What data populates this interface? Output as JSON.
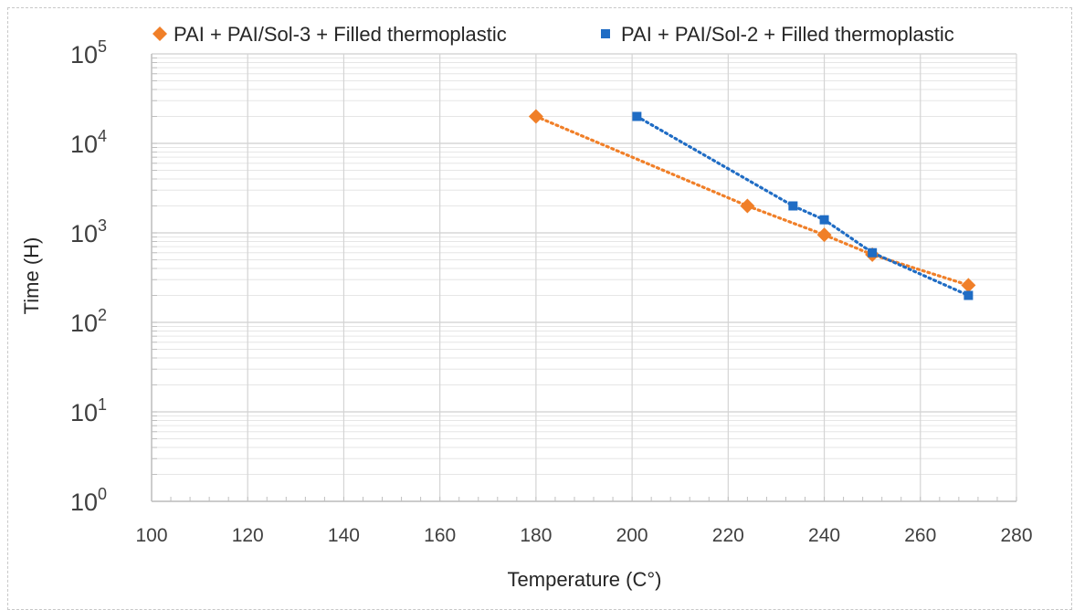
{
  "chart_data": {
    "type": "scatter",
    "title": "",
    "xlabel": "Temperature (C°)",
    "ylabel": "Time (H)",
    "xlim": [
      100,
      280
    ],
    "ylim": [
      1,
      100000
    ],
    "yscale": "log",
    "x_ticks": [
      "100",
      "120",
      "140",
      "160",
      "180",
      "200",
      "220",
      "240",
      "260",
      "280"
    ],
    "y_ticks": [
      {
        "base": "10",
        "exp": "0"
      },
      {
        "base": "10",
        "exp": "1"
      },
      {
        "base": "10",
        "exp": "2"
      },
      {
        "base": "10",
        "exp": "3"
      },
      {
        "base": "10",
        "exp": "4"
      },
      {
        "base": "10",
        "exp": "5"
      }
    ],
    "grid": true,
    "legend_position": "top",
    "series": [
      {
        "name": "PAI + PAI/Sol-3 + Filled thermoplastic",
        "color": "#f07f28",
        "marker": "diamond",
        "trendline": "dotted",
        "x": [
          180,
          224,
          240,
          250,
          270
        ],
        "y": [
          20000,
          2000,
          950,
          570,
          260
        ]
      },
      {
        "name": "PAI + PAI/Sol-2 + Filled thermoplastic",
        "color": "#1f6cc4",
        "marker": "square",
        "trendline": "dotted",
        "x": [
          201,
          233.5,
          240,
          250,
          270
        ],
        "y": [
          20000,
          2000,
          1400,
          600,
          200
        ]
      }
    ]
  }
}
